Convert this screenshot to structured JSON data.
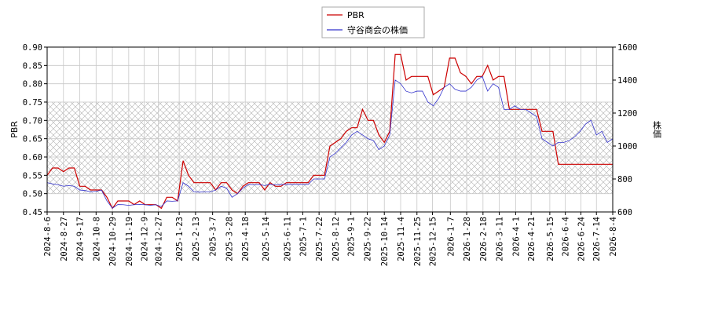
{
  "chart_data": {
    "type": "line",
    "ylabel": "PBR",
    "y2label": "株価",
    "xlim": [
      "2024-8-6",
      "2026-8-4"
    ],
    "xticks": [
      "2024-8-6",
      "2024-8-27",
      "2024-9-17",
      "2024-10-8",
      "2024-10-29",
      "2024-11-19",
      "2024-12-9",
      "2024-12-27",
      "2025-1-23",
      "2025-2-13",
      "2025-3-7",
      "2025-3-28",
      "2025-4-18",
      "2025-5-14",
      "2025-6-11",
      "2025-7-1",
      "2025-7-22",
      "2025-8-12",
      "2025-9-1",
      "2025-9-22",
      "2025-10-14",
      "2025-11-4",
      "2025-11-25",
      "2025-12-15",
      "2026-1-7",
      "2026-1-28",
      "2026-2-18",
      "2026-3-11",
      "2026-4-1",
      "2026-4-21",
      "2026-5-15",
      "2026-6-4",
      "2026-6-24",
      "2026-7-14",
      "2026-8-4"
    ],
    "ylim": [
      0.45,
      0.9
    ],
    "yticks": [
      0.45,
      {
        "value": 0.5,
        "label": "0.50"
      },
      0.55,
      {
        "value": 0.6,
        "label": "0.60"
      },
      0.65,
      {
        "value": 0.7,
        "label": "0.70"
      },
      0.75,
      {
        "value": 0.8,
        "label": "0.80"
      },
      0.85,
      {
        "value": 0.9,
        "label": "0.90"
      }
    ],
    "y2lim": [
      600,
      1600
    ],
    "y2ticks": [
      600,
      800,
      1000,
      1200,
      1400,
      1600
    ],
    "band": [
      0.5,
      0.75
    ],
    "grid": true,
    "legend": "upper center",
    "x": [
      "2024-8-6",
      "2024-8-13",
      "2024-8-20",
      "2024-8-27",
      "2024-9-3",
      "2024-9-10",
      "2024-9-17",
      "2024-9-24",
      "2024-10-1",
      "2024-10-8",
      "2024-10-15",
      "2024-10-22",
      "2024-10-29",
      "2024-11-5",
      "2024-11-12",
      "2024-11-19",
      "2024-11-26",
      "2024-12-3",
      "2024-12-10",
      "2024-12-17",
      "2024-12-24",
      "2024-12-31",
      "2025-1-7",
      "2025-1-14",
      "2025-1-21",
      "2025-1-28",
      "2025-2-4",
      "2025-2-11",
      "2025-2-18",
      "2025-2-25",
      "2025-3-4",
      "2025-3-11",
      "2025-3-18",
      "2025-3-25",
      "2025-4-1",
      "2025-4-8",
      "2025-4-15",
      "2025-4-22",
      "2025-4-29",
      "2025-5-6",
      "2025-5-13",
      "2025-5-20",
      "2025-5-27",
      "2025-6-3",
      "2025-6-10",
      "2025-6-17",
      "2025-6-24",
      "2025-7-1",
      "2025-7-8",
      "2025-7-15",
      "2025-7-22",
      "2025-7-29",
      "2025-8-5",
      "2025-8-12",
      "2025-8-19",
      "2025-8-26",
      "2025-9-2",
      "2025-9-9",
      "2025-9-16",
      "2025-9-23",
      "2025-9-30",
      "2025-10-7",
      "2025-10-14",
      "2025-10-21",
      "2025-10-28",
      "2025-11-4",
      "2025-11-11",
      "2025-11-18",
      "2025-11-25",
      "2025-12-2",
      "2025-12-9",
      "2025-12-16",
      "2025-12-23",
      "2025-12-30",
      "2026-1-6",
      "2026-1-13",
      "2026-1-20",
      "2026-1-27",
      "2026-2-3",
      "2026-2-10",
      "2026-2-17",
      "2026-2-24",
      "2026-3-3",
      "2026-3-10",
      "2026-3-17",
      "2026-3-24",
      "2026-3-31",
      "2026-4-7",
      "2026-4-14",
      "2026-4-21",
      "2026-4-28",
      "2026-5-5",
      "2026-5-12",
      "2026-5-19",
      "2026-5-26",
      "2026-6-2",
      "2026-6-9",
      "2026-6-16",
      "2026-6-23",
      "2026-6-30",
      "2026-7-7",
      "2026-7-14",
      "2026-7-21",
      "2026-7-28",
      "2026-8-4"
    ],
    "series": [
      {
        "name": "PBR",
        "color": "#cc0000",
        "axis": "y",
        "values": [
          0.55,
          0.57,
          0.57,
          0.56,
          0.57,
          0.57,
          0.52,
          0.52,
          0.51,
          0.51,
          0.51,
          0.49,
          0.46,
          0.48,
          0.48,
          0.48,
          0.47,
          0.48,
          0.47,
          0.47,
          0.47,
          0.46,
          0.49,
          0.49,
          0.48,
          0.59,
          0.55,
          0.53,
          0.53,
          0.53,
          0.53,
          0.51,
          0.53,
          0.53,
          0.51,
          0.5,
          0.52,
          0.53,
          0.53,
          0.53,
          0.51,
          0.53,
          0.52,
          0.52,
          0.53,
          0.53,
          0.53,
          0.53,
          0.53,
          0.55,
          0.55,
          0.55,
          0.63,
          0.64,
          0.65,
          0.67,
          0.68,
          0.68,
          0.73,
          0.7,
          0.7,
          0.66,
          0.64,
          0.67,
          0.88,
          0.88,
          0.81,
          0.82,
          0.82,
          0.82,
          0.82,
          0.77,
          0.78,
          0.79,
          0.87,
          0.87,
          0.83,
          0.82,
          0.8,
          0.82,
          0.82,
          0.85,
          0.81,
          0.82,
          0.82,
          0.73,
          0.73,
          0.73,
          0.73,
          0.73,
          0.73,
          0.67,
          0.67,
          0.67,
          0.58,
          0.58,
          0.58,
          0.58,
          0.58,
          0.58,
          0.58,
          0.58,
          0.58,
          0.58,
          0.58
        ]
      },
      {
        "name": "守谷商会の株価",
        "color": "#3333cc",
        "axis": "y2",
        "values": [
          778,
          770,
          765,
          756,
          760,
          756,
          733,
          730,
          722,
          725,
          733,
          667,
          622,
          645,
          644,
          640,
          644,
          646,
          644,
          640,
          644,
          633,
          667,
          665,
          667,
          778,
          756,
          722,
          720,
          722,
          722,
          733,
          756,
          744,
          689,
          711,
          744,
          767,
          765,
          767,
          760,
          767,
          765,
          767,
          767,
          767,
          767,
          767,
          767,
          800,
          800,
          800,
          933,
          956,
          989,
          1022,
          1067,
          1089,
          1067,
          1044,
          1033,
          978,
          1000,
          1067,
          1400,
          1378,
          1333,
          1322,
          1333,
          1333,
          1267,
          1244,
          1289,
          1356,
          1378,
          1344,
          1333,
          1333,
          1356,
          1400,
          1422,
          1333,
          1378,
          1356,
          1222,
          1222,
          1244,
          1222,
          1222,
          1200,
          1178,
          1044,
          1022,
          1000,
          1022,
          1022,
          1033,
          1056,
          1089,
          1133,
          1156,
          1067,
          1089,
          1022,
          1044
        ]
      }
    ]
  }
}
